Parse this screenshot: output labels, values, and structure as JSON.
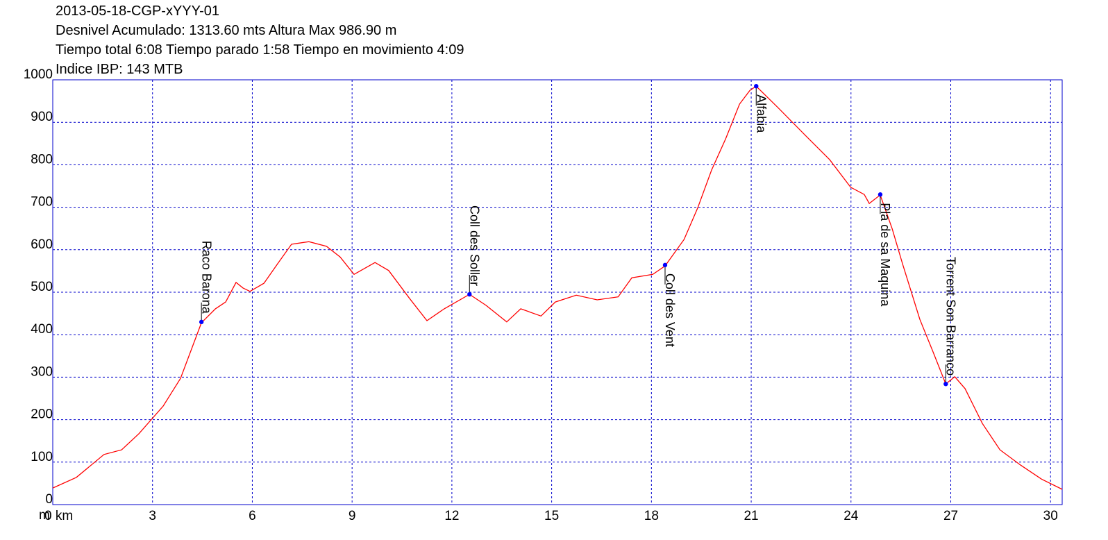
{
  "chart_data": {
    "type": "line",
    "title": "2013-05-18-CGP-xYYY-01",
    "subtitle_lines": [
      "Desnivel Acumulado: 1313.60 mts  Altura Max 986.90 m",
      "Tiempo total 6:08 Tiempo parado 1:58 Tiempo en movimiento 4:09",
      "Indice IBP: 143 MTB"
    ],
    "y_label": "m",
    "color": "#ff0000",
    "grid": true,
    "grid_color": "#0000cc",
    "marker_color": "#0000ff",
    "xlim": [
      0,
      30.35
    ],
    "ylim": [
      0,
      1000
    ],
    "xticks": [
      {
        "value": 0,
        "label": "0 km"
      },
      3,
      6,
      9,
      12,
      15,
      18,
      21,
      24,
      27,
      30
    ],
    "yticks": [
      0,
      100,
      200,
      300,
      400,
      500,
      600,
      700,
      800,
      900,
      1000
    ],
    "x": [
      0,
      0.71,
      1.54,
      2.07,
      2.59,
      3.32,
      3.84,
      4.47,
      4.89,
      5.2,
      5.51,
      5.72,
      5.93,
      6.35,
      6.76,
      7.18,
      7.7,
      8.23,
      8.64,
      9.06,
      9.69,
      10.1,
      10.73,
      11.25,
      11.77,
      12.53,
      13.03,
      13.65,
      14.07,
      14.68,
      15.11,
      15.74,
      16.37,
      17.0,
      17.41,
      18.04,
      18.41,
      18.98,
      19.39,
      19.81,
      20.23,
      20.65,
      20.96,
      21.15,
      21.8,
      22.63,
      23.36,
      23.99,
      24.4,
      24.55,
      24.88,
      25.24,
      25.55,
      26.07,
      26.49,
      26.85,
      27.12,
      27.43,
      27.95,
      28.48,
      29.1,
      29.73,
      30.35
    ],
    "values": [
      39,
      64,
      118,
      129,
      167,
      232,
      297,
      428,
      461,
      477,
      523,
      510,
      502,
      521,
      567,
      613,
      619,
      608,
      583,
      542,
      570,
      551,
      485,
      433,
      461,
      495,
      469,
      430,
      461,
      444,
      477,
      493,
      482,
      489,
      534,
      542,
      562,
      624,
      698,
      788,
      861,
      943,
      975,
      985,
      935,
      869,
      812,
      747,
      730,
      709,
      729,
      649,
      567,
      436,
      355,
      284,
      301,
      273,
      191,
      129,
      93,
      60,
      36
    ],
    "annotations": [
      {
        "label": "Raco Barona",
        "x": 4.47,
        "y": 430
      },
      {
        "label": "Coll des Soller",
        "x": 12.53,
        "y": 495
      },
      {
        "label": "Coll des Vent",
        "x": 18.41,
        "y": 564
      },
      {
        "label": "Alfabia",
        "x": 21.15,
        "y": 985
      },
      {
        "label": "Pla de sa Maquina",
        "x": 24.88,
        "y": 730
      },
      {
        "label": "Torrent Son Barranco",
        "x": 26.85,
        "y": 284
      }
    ]
  }
}
